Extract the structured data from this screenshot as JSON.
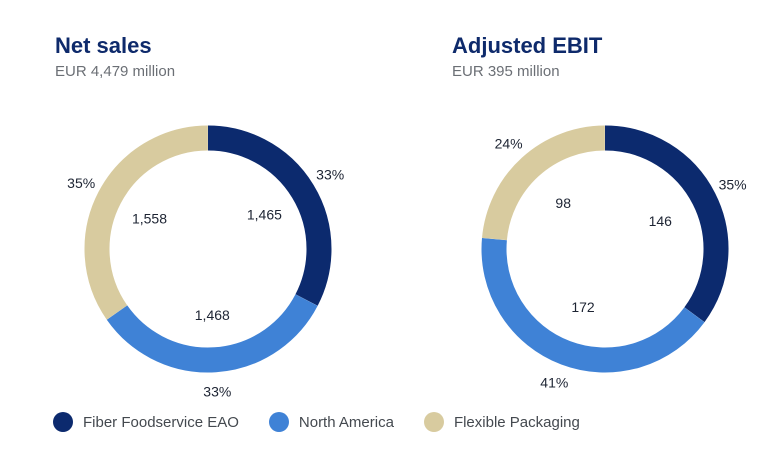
{
  "colors": {
    "fiber_foodservice_eao": "#0c2a6e",
    "north_america": "#3f82d6",
    "flexible_packaging": "#d8cb9f"
  },
  "legend": [
    {
      "label": "Fiber Foodservice EAO",
      "color": "#0c2a6e"
    },
    {
      "label": "North America",
      "color": "#3f82d6"
    },
    {
      "label": "Flexible Packaging",
      "color": "#d8cb9f"
    }
  ],
  "chart_data": [
    {
      "type": "pie",
      "title": "Net sales",
      "subtitle": "EUR 4,479 million",
      "categories": [
        "Fiber Foodservice EAO",
        "North America",
        "Flexible Packaging"
      ],
      "values": [
        1465,
        1468,
        1558
      ],
      "value_labels": [
        "1,465",
        "1,468",
        "1,558"
      ],
      "percent_labels": [
        "33%",
        "33%",
        "35%"
      ],
      "colors": [
        "#0c2a6e",
        "#3f82d6",
        "#d8cb9f"
      ]
    },
    {
      "type": "pie",
      "title": "Adjusted EBIT",
      "subtitle": "EUR 395 million",
      "categories": [
        "Fiber Foodservice EAO",
        "North America",
        "Flexible Packaging"
      ],
      "values": [
        146,
        172,
        98
      ],
      "value_labels": [
        "146",
        "172",
        "98"
      ],
      "percent_labels": [
        "35%",
        "41%",
        "24%"
      ],
      "colors": [
        "#0c2a6e",
        "#3f82d6",
        "#d8cb9f"
      ]
    }
  ]
}
